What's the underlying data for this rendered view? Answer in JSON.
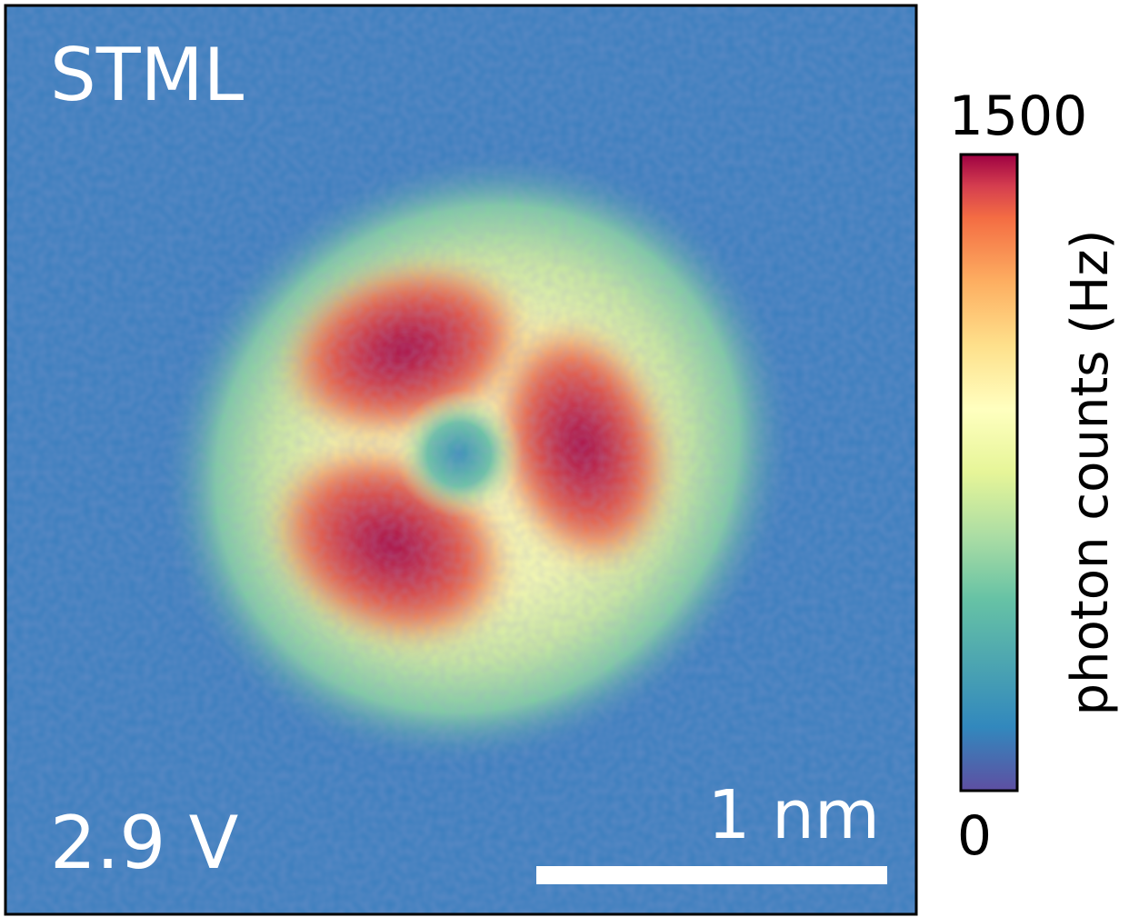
{
  "image": {
    "label": "STML",
    "voltage": "2.9 V",
    "scale_bar": "1 nm"
  },
  "colorbar": {
    "max": 1500,
    "min": 0,
    "label": "photon counts (Hz)"
  }
}
